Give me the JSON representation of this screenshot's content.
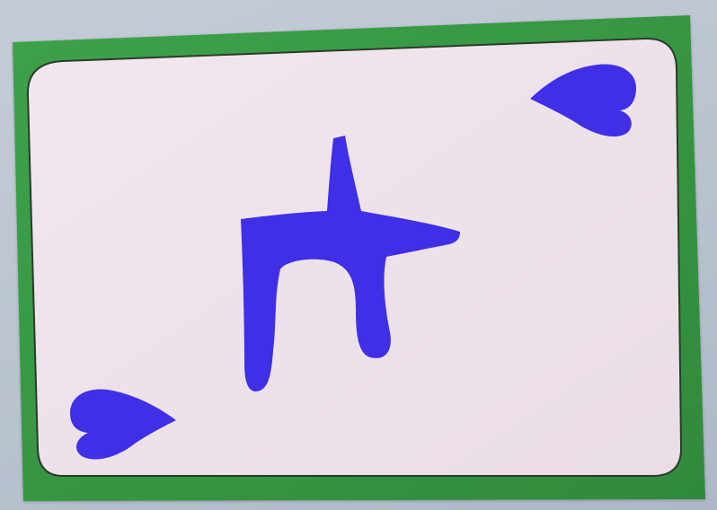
{
  "card": {
    "face": "wide",
    "suit_icon": "heart-icon",
    "suit_count": 2,
    "center_glyph_icon": "abstract-glyph-icon",
    "colors": {
      "background": "#bcc5d2",
      "border": "#3ea24a",
      "border_dark": "#2f8a3c",
      "card_face": "#efe3ea",
      "outline": "#2b3b2b",
      "ink": "#3f2fe6"
    }
  }
}
